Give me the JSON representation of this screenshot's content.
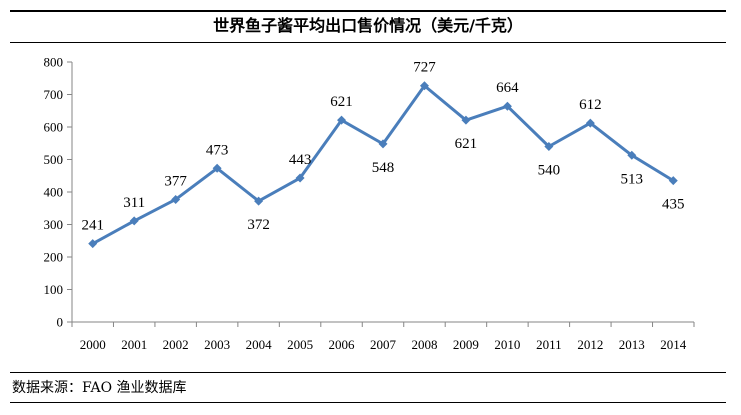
{
  "chart_data": {
    "type": "line",
    "title": "世界鱼子酱平均出口售价情况（美元/千克）",
    "xlabel": "",
    "ylabel": "",
    "categories": [
      "2000",
      "2001",
      "2002",
      "2003",
      "2004",
      "2005",
      "2006",
      "2007",
      "2008",
      "2009",
      "2010",
      "2011",
      "2012",
      "2013",
      "2014"
    ],
    "series": [
      {
        "values": [
          241,
          311,
          377,
          473,
          372,
          443,
          621,
          548,
          727,
          621,
          664,
          540,
          612,
          513,
          435
        ]
      }
    ],
    "ylim": [
      0,
      800
    ],
    "yticks": [
      "0",
      "100",
      "200",
      "300",
      "400",
      "500",
      "600",
      "700",
      "800"
    ],
    "grid": false,
    "legend": "none",
    "line_color": "#4a7ebb",
    "source": "数据来源：FAO 渔业数据库"
  }
}
